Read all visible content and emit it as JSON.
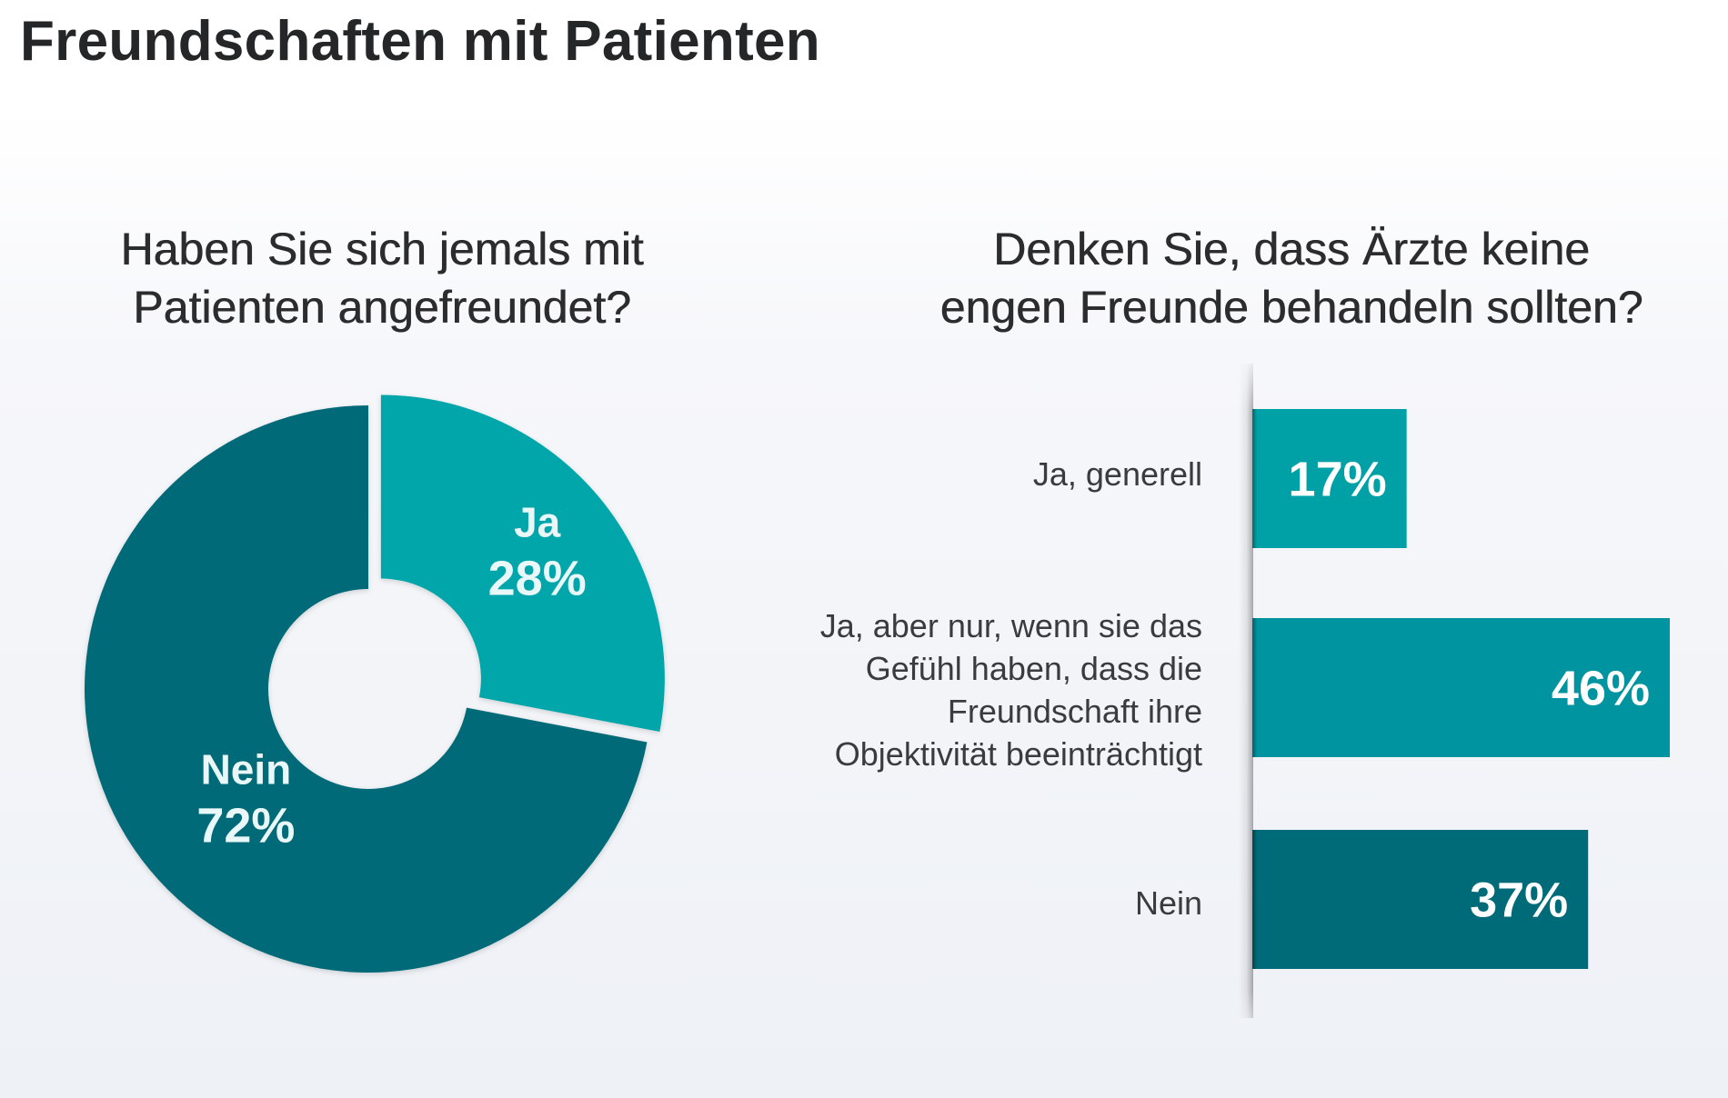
{
  "title": "Freundschaften mit Patienten",
  "chart_data": [
    {
      "type": "pie",
      "style": "donut",
      "title": "Haben Sie sich jemals mit Patienten angefreundet?",
      "title_lines": [
        "Haben Sie sich jemals mit",
        "Patienten angefreundet?"
      ],
      "unit": "%",
      "slices": [
        {
          "label": "Ja",
          "value": 28,
          "value_text": "28%",
          "color": "#00a6a9",
          "exploded": true
        },
        {
          "label": "Nein",
          "value": 72,
          "value_text": "72%",
          "color": "#006b78",
          "exploded": false
        }
      ]
    },
    {
      "type": "bar",
      "orientation": "horizontal",
      "title": "Denken Sie, dass Ärzte keine engen Freunde behandeln sollten?",
      "title_lines": [
        "Denken Sie, dass Ärzte keine",
        "engen Freunde behandeln sollten?"
      ],
      "unit": "%",
      "categories": [
        [
          "Ja, generell"
        ],
        [
          "Ja, aber nur, wenn sie das",
          "Gefühl haben, dass die",
          "Freundschaft ihre",
          "Objektivität beeinträchtigt"
        ],
        [
          "Nein"
        ]
      ],
      "values": [
        17,
        46,
        37
      ],
      "value_labels": [
        "17%",
        "46%",
        "37%"
      ],
      "colors": [
        "#00a1a6",
        "#0093a0",
        "#006b78"
      ]
    }
  ]
}
